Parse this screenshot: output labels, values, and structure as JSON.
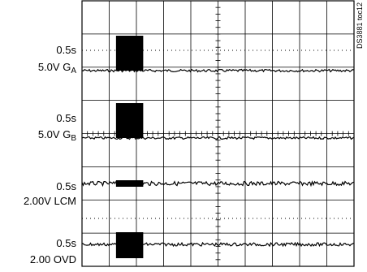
{
  "channels": [
    {
      "timebase": "0.5s",
      "scale": "5.0V",
      "name": "G",
      "subscript": "A"
    },
    {
      "timebase": "0.5s",
      "scale": "5.0V",
      "name": "G",
      "subscript": "B"
    },
    {
      "timebase": "0.5s",
      "scale": "2.00V",
      "name": "LCM"
    },
    {
      "timebase": "0.5s",
      "scale": "2.00",
      "name": "OVD"
    }
  ],
  "note": "DS3881 toc12"
}
